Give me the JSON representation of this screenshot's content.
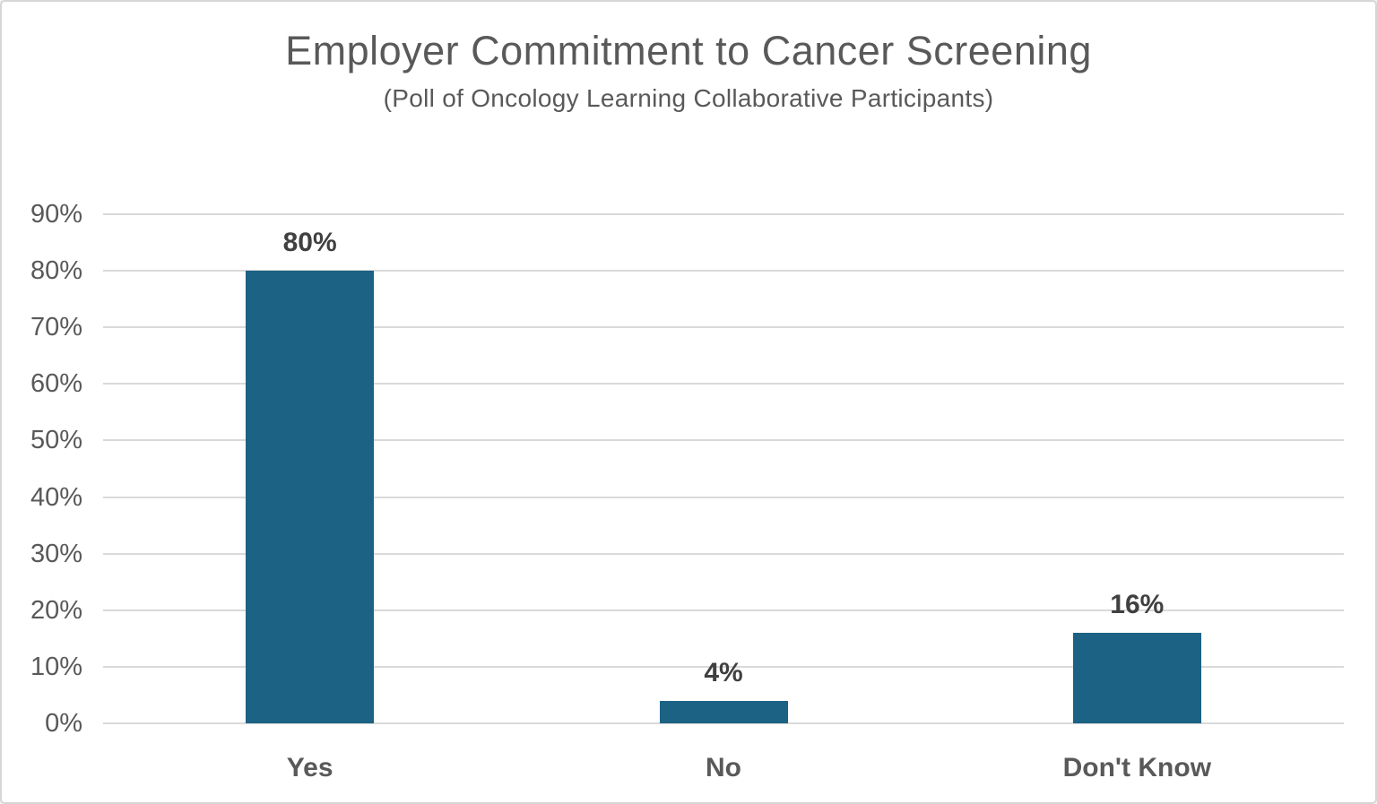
{
  "header": {
    "title": "Employer Commitment to Cancer Screening",
    "subtitle": "(Poll of Oncology Learning Collaborative Participants)"
  },
  "chart_data": {
    "type": "bar",
    "title": "Employer Commitment to Cancer Screening",
    "subtitle": "(Poll of Oncology Learning Collaborative Participants)",
    "categories": [
      "Yes",
      "No",
      "Don't Know"
    ],
    "values": [
      80,
      4,
      16
    ],
    "value_labels": [
      "80%",
      "4%",
      "16%"
    ],
    "xlabel": "",
    "ylabel": "",
    "ylim": [
      0,
      90
    ],
    "ytick_step": 10,
    "ytick_labels": [
      "0%",
      "10%",
      "20%",
      "30%",
      "40%",
      "50%",
      "60%",
      "70%",
      "80%",
      "90%"
    ],
    "grid": true,
    "legend": false,
    "colors": {
      "bar": "#1b6284",
      "gridline": "#d9d9d9",
      "value_label": "#404040",
      "axis_text": "#595959",
      "title_text": "#595959"
    }
  }
}
